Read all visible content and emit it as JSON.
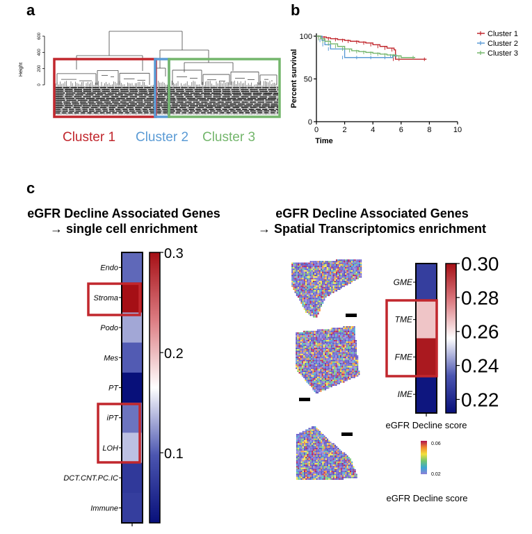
{
  "panel_labels": {
    "a": "a",
    "b": "b",
    "c": "c"
  },
  "chart_data": [
    {
      "type": "dendrogram",
      "panel": "a",
      "ylabel": "Height",
      "ylim": [
        0,
        600
      ],
      "y_ticks": [
        "0",
        "200",
        "400",
        "600"
      ],
      "clusters": [
        {
          "name": "Cluster 1",
          "color": "#c1272d"
        },
        {
          "name": "Cluster 2",
          "color": "#5b9bd5"
        },
        {
          "name": "Cluster 3",
          "color": "#74b66c"
        }
      ]
    },
    {
      "type": "line",
      "panel": "b",
      "title": "",
      "xlabel": "Time",
      "ylabel": "Percent survival",
      "xlim": [
        0,
        10
      ],
      "ylim": [
        0,
        100
      ],
      "x_ticks": [
        "0",
        "2",
        "4",
        "6",
        "8",
        "10"
      ],
      "y_ticks": [
        "0",
        "50",
        "100"
      ],
      "series": [
        {
          "name": "Cluster 1",
          "color": "#c1272d",
          "x": [
            0,
            0.3,
            0.7,
            1.0,
            1.5,
            2.0,
            2.4,
            3.0,
            3.5,
            4.0,
            4.5,
            5.0,
            5.5,
            5.6,
            6.0,
            7.8
          ],
          "y": [
            100,
            99,
            98,
            97,
            96,
            95,
            94,
            93,
            92,
            90,
            88,
            86,
            84,
            73,
            73,
            73
          ]
        },
        {
          "name": "Cluster 2",
          "color": "#5b9bd5",
          "x": [
            0,
            0.4,
            0.6,
            1.0,
            2.0,
            3.0,
            4.0,
            5.0,
            5.4,
            5.8
          ],
          "y": [
            100,
            95,
            90,
            85,
            75,
            75,
            75,
            75,
            77,
            77
          ]
        },
        {
          "name": "Cluster 3",
          "color": "#74b66c",
          "x": [
            0,
            0.3,
            0.6,
            1.0,
            1.5,
            2.0,
            2.5,
            3.0,
            3.5,
            4.0,
            4.5,
            5.0,
            5.6,
            6.0,
            7.0
          ],
          "y": [
            100,
            97,
            94,
            91,
            88,
            85,
            83,
            82,
            81,
            80,
            79,
            78,
            77,
            75,
            75
          ]
        }
      ]
    },
    {
      "type": "heatmap",
      "panel": "c-left",
      "categories": [
        "Endo",
        "Stroma",
        "Podo",
        "Mes",
        "PT",
        "iPT",
        "LOH",
        "DCT.CNT.PC.IC",
        "Immune"
      ],
      "values": [
        0.105,
        0.3,
        0.13,
        0.1,
        0.03,
        0.11,
        0.14,
        0.07,
        0.075
      ],
      "highlighted": [
        "Stroma",
        "iPT",
        "LOH"
      ],
      "scale": {
        "min": 0.03,
        "max": 0.3,
        "ticks": [
          "0.1",
          "0.2",
          "0.3"
        ],
        "tick_values": [
          0.1,
          0.2,
          0.3
        ]
      }
    },
    {
      "type": "heatmap",
      "panel": "c-right",
      "categories": [
        "GME",
        "TME",
        "FME",
        "IME"
      ],
      "values": [
        0.225,
        0.265,
        0.298,
        0.212
      ],
      "highlighted": [
        "TME",
        "FME"
      ],
      "xlabel": "eGFR Decline score",
      "scale": {
        "min": 0.21,
        "max": 0.3,
        "ticks": [
          "0.30",
          "0.28",
          "0.26",
          "0.24",
          "0.22"
        ],
        "tick_values": [
          0.3,
          0.28,
          0.26,
          0.24,
          0.22
        ]
      }
    }
  ],
  "panel_c": {
    "left_title_line1": "eGFR Decline Associated Genes",
    "left_title_line2": "→ single cell enrichment",
    "right_title_line1": "eGFR Decline Associated Genes",
    "right_title_line2": "→ Spatial Transcriptomics enrichment",
    "spatial_colorbar": {
      "max_label": "0.06",
      "min_label": "0.02",
      "label": "eGFR Decline score"
    }
  },
  "colors": {
    "red": "#c1272d",
    "blue": "#5b9bd5",
    "green": "#74b66c",
    "heat_high": "#a50f15",
    "heat_low": "#08107a"
  }
}
